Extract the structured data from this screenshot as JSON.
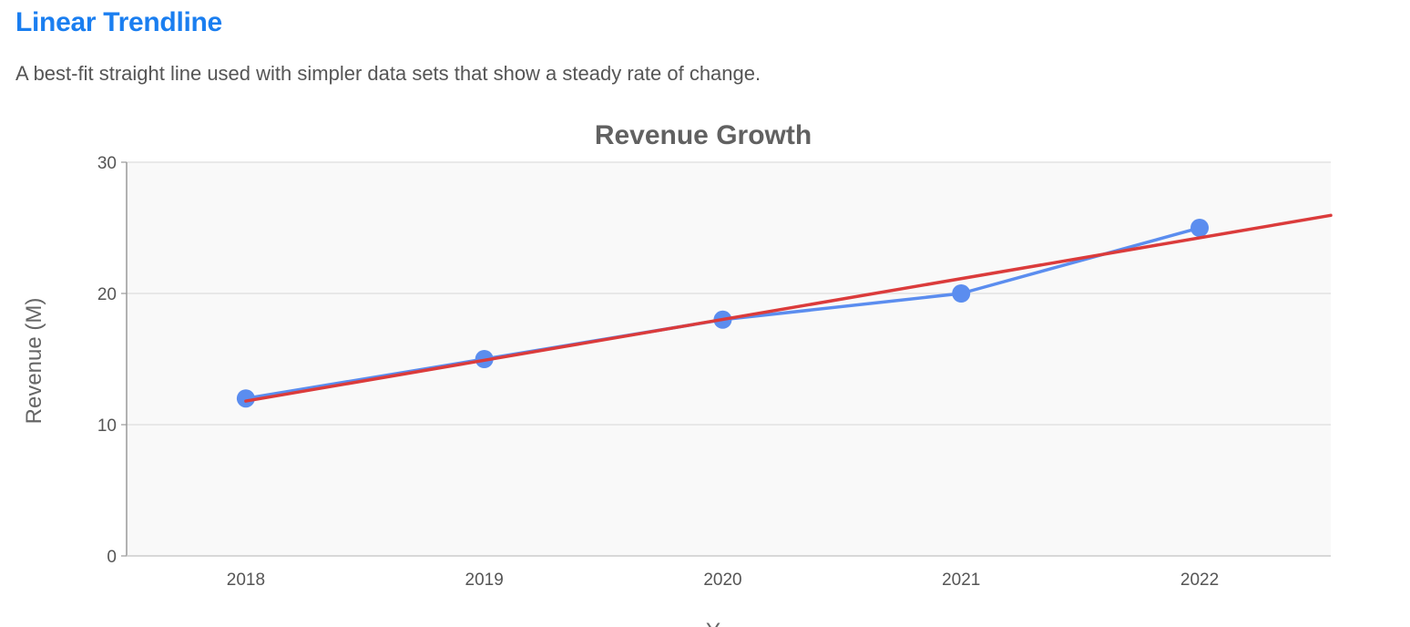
{
  "section": {
    "title": "Linear Trendline",
    "description": "A best-fit straight line used with simpler data sets that show a steady rate of change."
  },
  "chart_data": {
    "type": "line",
    "title": "Revenue Growth",
    "xlabel": "Y",
    "ylabel": "Revenue (M)",
    "categories": [
      "2018",
      "2019",
      "2020",
      "2021",
      "2022"
    ],
    "x_index": [
      0,
      1,
      2,
      3,
      4
    ],
    "xlim": [
      -0.5,
      4.55
    ],
    "ylim": [
      0,
      30
    ],
    "yticks": [
      0,
      10,
      20,
      30
    ],
    "grid": true,
    "series": [
      {
        "values": [
          12,
          15,
          18,
          20,
          25
        ],
        "color": "#5b8def"
      }
    ],
    "trendline": {
      "type": "linear",
      "x_range": [
        0,
        4.55
      ],
      "values": [
        11.8,
        25.95
      ],
      "color": "#db3b3b"
    }
  }
}
